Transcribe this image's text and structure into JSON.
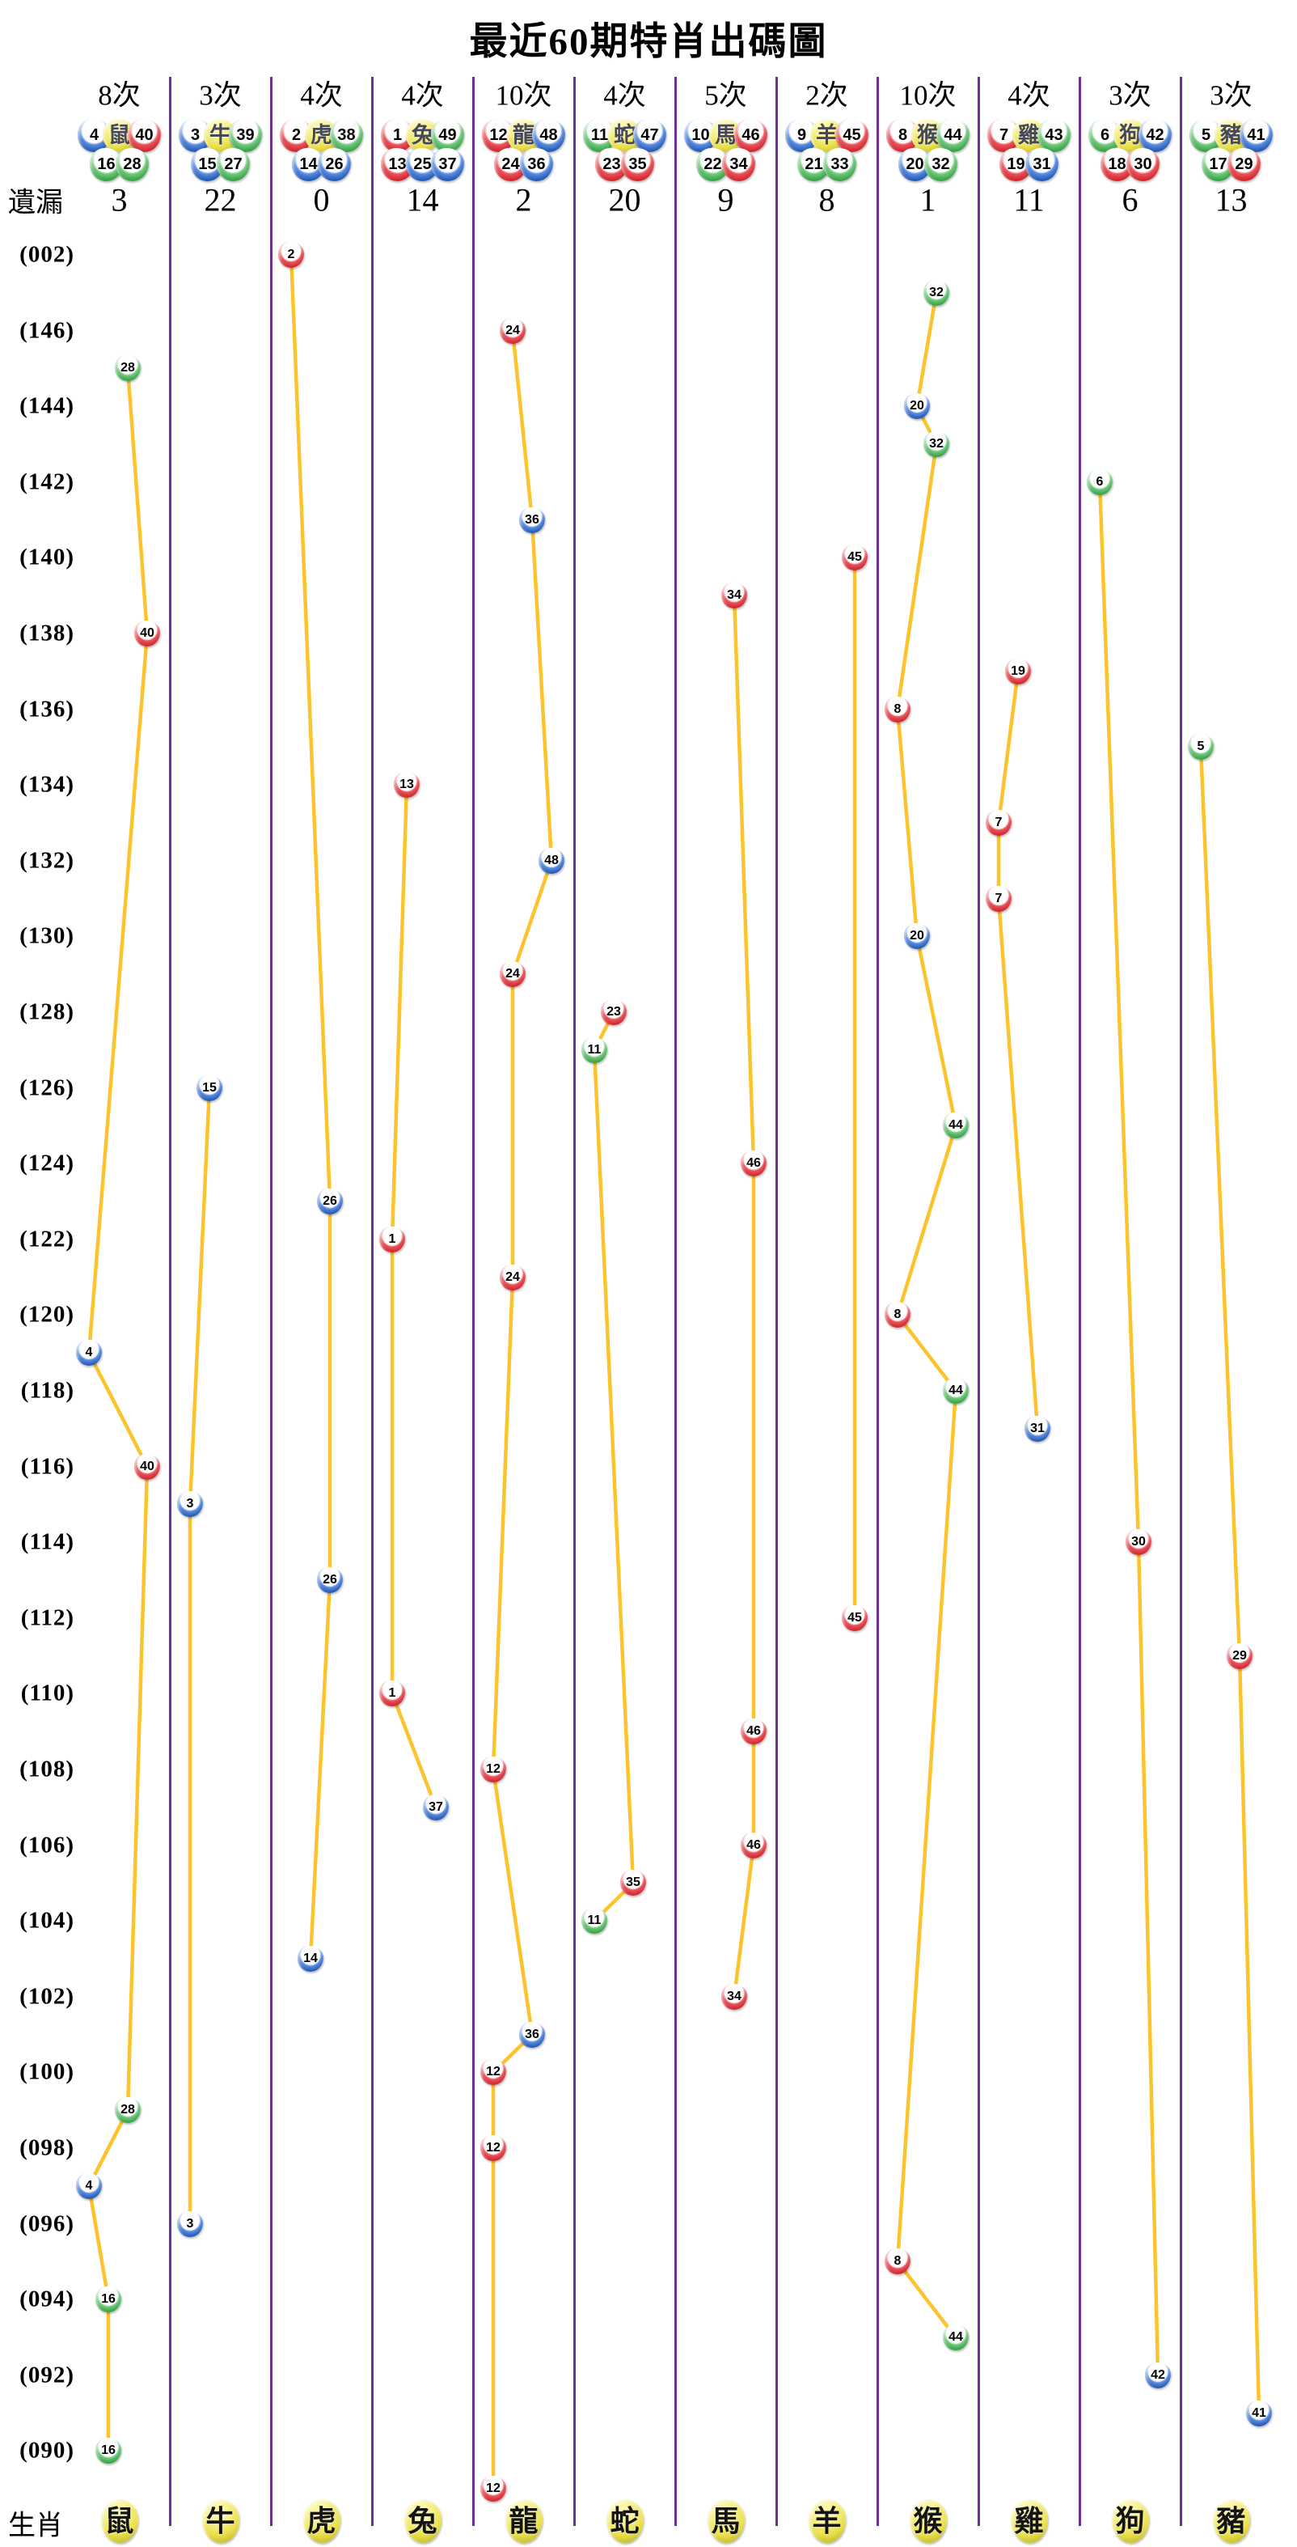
{
  "title": "最近60期特肖出碼圖",
  "left_axis": {
    "miss_label": "遺漏",
    "zodiac_label": "生肖",
    "period_labels": [
      "(002)",
      "(146)",
      "(144)",
      "(142)",
      "(140)",
      "(138)",
      "(136)",
      "(134)",
      "(132)",
      "(130)",
      "(128)",
      "(126)",
      "(124)",
      "(122)",
      "(120)",
      "(118)",
      "(116)",
      "(114)",
      "(112)",
      "(110)",
      "(108)",
      "(106)",
      "(104)",
      "(102)",
      "(100)",
      "(098)",
      "(096)",
      "(094)",
      "(092)",
      "(090)"
    ]
  },
  "colors": {
    "separator": "#6f2d96",
    "trend_line": "#fdc32c",
    "ball_red": "#ce2028",
    "ball_blue": "#1c53ae",
    "ball_green": "#2d9e3e",
    "ball_yellow": "#e9e04b",
    "zodiac_char": "#47475a"
  },
  "number_colors": {
    "red": [
      1,
      2,
      7,
      8,
      12,
      13,
      18,
      19,
      23,
      24,
      29,
      30,
      34,
      35,
      40,
      45,
      46
    ],
    "blue": [
      3,
      4,
      9,
      10,
      14,
      15,
      20,
      25,
      26,
      31,
      36,
      37,
      41,
      42,
      47,
      48
    ],
    "green": [
      5,
      6,
      11,
      16,
      17,
      21,
      22,
      27,
      28,
      32,
      33,
      38,
      39,
      43,
      44,
      49
    ]
  },
  "chart_data": {
    "type": "scatter",
    "title": "最近60期特肖出碼圖",
    "row_count": 60,
    "row_note": "row 0 = period 002, row 1 = 001, row r>=2 = period (148-r) of previous year, down to 089; labels shown every 2 rows",
    "columns": [
      {
        "zodiac": "鼠",
        "count_label": "8次",
        "miss": 3,
        "numbers": [
          4,
          16,
          28,
          40
        ],
        "points": [
          {
            "row": 3,
            "num": 28
          },
          {
            "row": 10,
            "num": 40
          },
          {
            "row": 29,
            "num": 4
          },
          {
            "row": 32,
            "num": 40
          },
          {
            "row": 49,
            "num": 28
          },
          {
            "row": 51,
            "num": 4
          },
          {
            "row": 54,
            "num": 16
          },
          {
            "row": 58,
            "num": 16
          }
        ]
      },
      {
        "zodiac": "牛",
        "count_label": "3次",
        "miss": 22,
        "numbers": [
          3,
          15,
          27,
          39
        ],
        "points": [
          {
            "row": 22,
            "num": 15
          },
          {
            "row": 33,
            "num": 3
          },
          {
            "row": 52,
            "num": 3
          }
        ]
      },
      {
        "zodiac": "虎",
        "count_label": "4次",
        "miss": 0,
        "numbers": [
          2,
          14,
          26,
          38
        ],
        "points": [
          {
            "row": 0,
            "num": 2
          },
          {
            "row": 25,
            "num": 26
          },
          {
            "row": 35,
            "num": 26
          },
          {
            "row": 45,
            "num": 14
          }
        ]
      },
      {
        "zodiac": "兔",
        "count_label": "4次",
        "miss": 14,
        "numbers": [
          1,
          13,
          25,
          37,
          49
        ],
        "points": [
          {
            "row": 14,
            "num": 13
          },
          {
            "row": 26,
            "num": 1
          },
          {
            "row": 38,
            "num": 1
          },
          {
            "row": 41,
            "num": 37
          }
        ]
      },
      {
        "zodiac": "龍",
        "count_label": "10次",
        "miss": 2,
        "numbers": [
          12,
          24,
          36,
          48
        ],
        "points": [
          {
            "row": 2,
            "num": 24
          },
          {
            "row": 7,
            "num": 36
          },
          {
            "row": 16,
            "num": 48
          },
          {
            "row": 19,
            "num": 24
          },
          {
            "row": 27,
            "num": 24
          },
          {
            "row": 40,
            "num": 12
          },
          {
            "row": 47,
            "num": 36
          },
          {
            "row": 48,
            "num": 12
          },
          {
            "row": 50,
            "num": 12
          },
          {
            "row": 59,
            "num": 12
          }
        ]
      },
      {
        "zodiac": "蛇",
        "count_label": "4次",
        "miss": 20,
        "numbers": [
          11,
          23,
          35,
          47
        ],
        "points": [
          {
            "row": 20,
            "num": 23
          },
          {
            "row": 21,
            "num": 11
          },
          {
            "row": 43,
            "num": 35
          },
          {
            "row": 44,
            "num": 11
          }
        ]
      },
      {
        "zodiac": "馬",
        "count_label": "5次",
        "miss": 9,
        "numbers": [
          10,
          22,
          34,
          46
        ],
        "points": [
          {
            "row": 9,
            "num": 34
          },
          {
            "row": 24,
            "num": 46
          },
          {
            "row": 39,
            "num": 46
          },
          {
            "row": 42,
            "num": 46
          },
          {
            "row": 46,
            "num": 34
          }
        ]
      },
      {
        "zodiac": "羊",
        "count_label": "2次",
        "miss": 8,
        "numbers": [
          9,
          21,
          33,
          45
        ],
        "points": [
          {
            "row": 8,
            "num": 45
          },
          {
            "row": 36,
            "num": 45
          }
        ]
      },
      {
        "zodiac": "猴",
        "count_label": "10次",
        "miss": 1,
        "numbers": [
          8,
          20,
          32,
          44
        ],
        "points": [
          {
            "row": 1,
            "num": 32
          },
          {
            "row": 4,
            "num": 20
          },
          {
            "row": 5,
            "num": 32
          },
          {
            "row": 12,
            "num": 8
          },
          {
            "row": 18,
            "num": 20
          },
          {
            "row": 23,
            "num": 44
          },
          {
            "row": 28,
            "num": 8
          },
          {
            "row": 30,
            "num": 44
          },
          {
            "row": 53,
            "num": 8
          },
          {
            "row": 55,
            "num": 44
          }
        ]
      },
      {
        "zodiac": "雞",
        "count_label": "4次",
        "miss": 11,
        "numbers": [
          7,
          19,
          31,
          43
        ],
        "points": [
          {
            "row": 11,
            "num": 19
          },
          {
            "row": 15,
            "num": 7
          },
          {
            "row": 17,
            "num": 7
          },
          {
            "row": 31,
            "num": 31
          }
        ]
      },
      {
        "zodiac": "狗",
        "count_label": "3次",
        "miss": 6,
        "numbers": [
          6,
          18,
          30,
          42
        ],
        "points": [
          {
            "row": 6,
            "num": 6
          },
          {
            "row": 34,
            "num": 30
          },
          {
            "row": 56,
            "num": 42
          }
        ]
      },
      {
        "zodiac": "豬",
        "count_label": "3次",
        "miss": 13,
        "numbers": [
          5,
          17,
          29,
          41
        ],
        "points": [
          {
            "row": 13,
            "num": 5
          },
          {
            "row": 37,
            "num": 29
          },
          {
            "row": 57,
            "num": 41
          }
        ]
      }
    ]
  }
}
